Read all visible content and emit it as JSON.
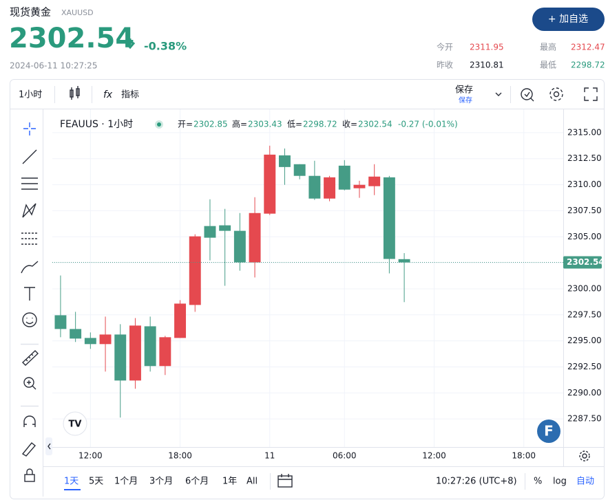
{
  "header": {
    "name": "现货黄金",
    "symbol": "XAUUSD",
    "change_pct": "-0.38%",
    "timestamp": "2024-06-11 10:27:25",
    "button": "+ 加自选",
    "stats": [
      {
        "label": "今开",
        "value": "2311.95"
      },
      {
        "label": "最高",
        "value": "2312.47"
      },
      {
        "label": "昨收",
        "value": "2310.81"
      },
      {
        "label": "最低",
        "value": "2298.72"
      }
    ]
  },
  "toolbar": {
    "interval": "1小时",
    "indicators": "指标",
    "save": "保存",
    "save_sub": "保存"
  },
  "chart_data": {
    "type": "candlestick",
    "legend": {
      "symbol": "FEAUUS · 1小时",
      "open": "开=",
      "high": "高=",
      "low": "低=",
      "close": "收=",
      "change": "-0.27 (-0.01%)"
    },
    "up_color": "#e5494f",
    "down_color": "#459c86",
    "open": [
      2297.46,
      2296.14,
      2295.28,
      2294.69,
      2295.61,
      2291.19,
      2296.4,
      2292.58,
      2295.28,
      2298.45,
      2306.03,
      2306.1,
      2305.57,
      2302.54,
      2307.22,
      2312.82,
      2311.97,
      2310.85,
      2308.67,
      2311.83,
      2309.66,
      2309.86,
      2310.71,
      2302.85
    ],
    "high": [
      2301.28,
      2297.79,
      2295.81,
      2297.33,
      2296.6,
      2297.19,
      2297.33,
      2295.48,
      2298.91,
      2305.24,
      2308.6,
      2307.68,
      2307.28,
      2308.8,
      2313.75,
      2313.48,
      2311.97,
      2312.3,
      2310.85,
      2312.36,
      2310.38,
      2311.97,
      2310.85,
      2303.43
    ],
    "low": [
      2295.35,
      2294.89,
      2294.23,
      2292.05,
      2287.63,
      2290.4,
      2292.05,
      2291.72,
      2295.28,
      2297.79,
      2302.73,
      2300.29,
      2301.74,
      2301.09,
      2307.09,
      2309.99,
      2310.52,
      2308.54,
      2308.41,
      2309.46,
      2308.74,
      2309.0,
      2301.48,
      2298.72
    ],
    "close": [
      2296.14,
      2295.22,
      2294.69,
      2295.61,
      2291.19,
      2296.47,
      2292.58,
      2295.35,
      2298.58,
      2305.04,
      2304.91,
      2305.57,
      2302.54,
      2307.28,
      2312.89,
      2311.7,
      2310.85,
      2308.67,
      2310.71,
      2309.53,
      2309.99,
      2310.78,
      2302.87,
      2302.54
    ],
    "xlim": [
      -0.55,
      33.64
    ],
    "xticks": [
      {
        "value": 2,
        "label": "12:00"
      },
      {
        "value": 8,
        "label": "18:00"
      },
      {
        "value": 14,
        "label": "11"
      },
      {
        "value": 19,
        "label": "06:00"
      },
      {
        "value": 25,
        "label": "12:00"
      },
      {
        "value": 31,
        "label": "18:00"
      }
    ],
    "ylim": [
      2284.8,
      2317.24
    ],
    "yticks": [
      {
        "value": 2287.5,
        "label": "2287.50"
      },
      {
        "value": 2290,
        "label": "2290.00"
      },
      {
        "value": 2292.5,
        "label": "2292.50"
      },
      {
        "value": 2295,
        "label": "2295.00"
      },
      {
        "value": 2297.5,
        "label": "2297.50"
      },
      {
        "value": 2300,
        "label": "2300.00"
      },
      {
        "value": 2302.5,
        "label": "2302.50"
      },
      {
        "value": 2305,
        "label": "2305.00"
      },
      {
        "value": 2307.5,
        "label": "2307.50"
      },
      {
        "value": 2310,
        "label": "2310.00"
      },
      {
        "value": 2312.5,
        "label": "2312.50"
      },
      {
        "value": 2315,
        "label": "2315.00"
      }
    ],
    "grid": true
  },
  "footer": {
    "ranges": [
      "1天",
      "5天",
      "1个月",
      "3个月",
      "6个月",
      "1年",
      "All"
    ],
    "clock": "10:27:26 (UTC+8)",
    "percent": "%",
    "log": "log",
    "auto": "自动"
  }
}
